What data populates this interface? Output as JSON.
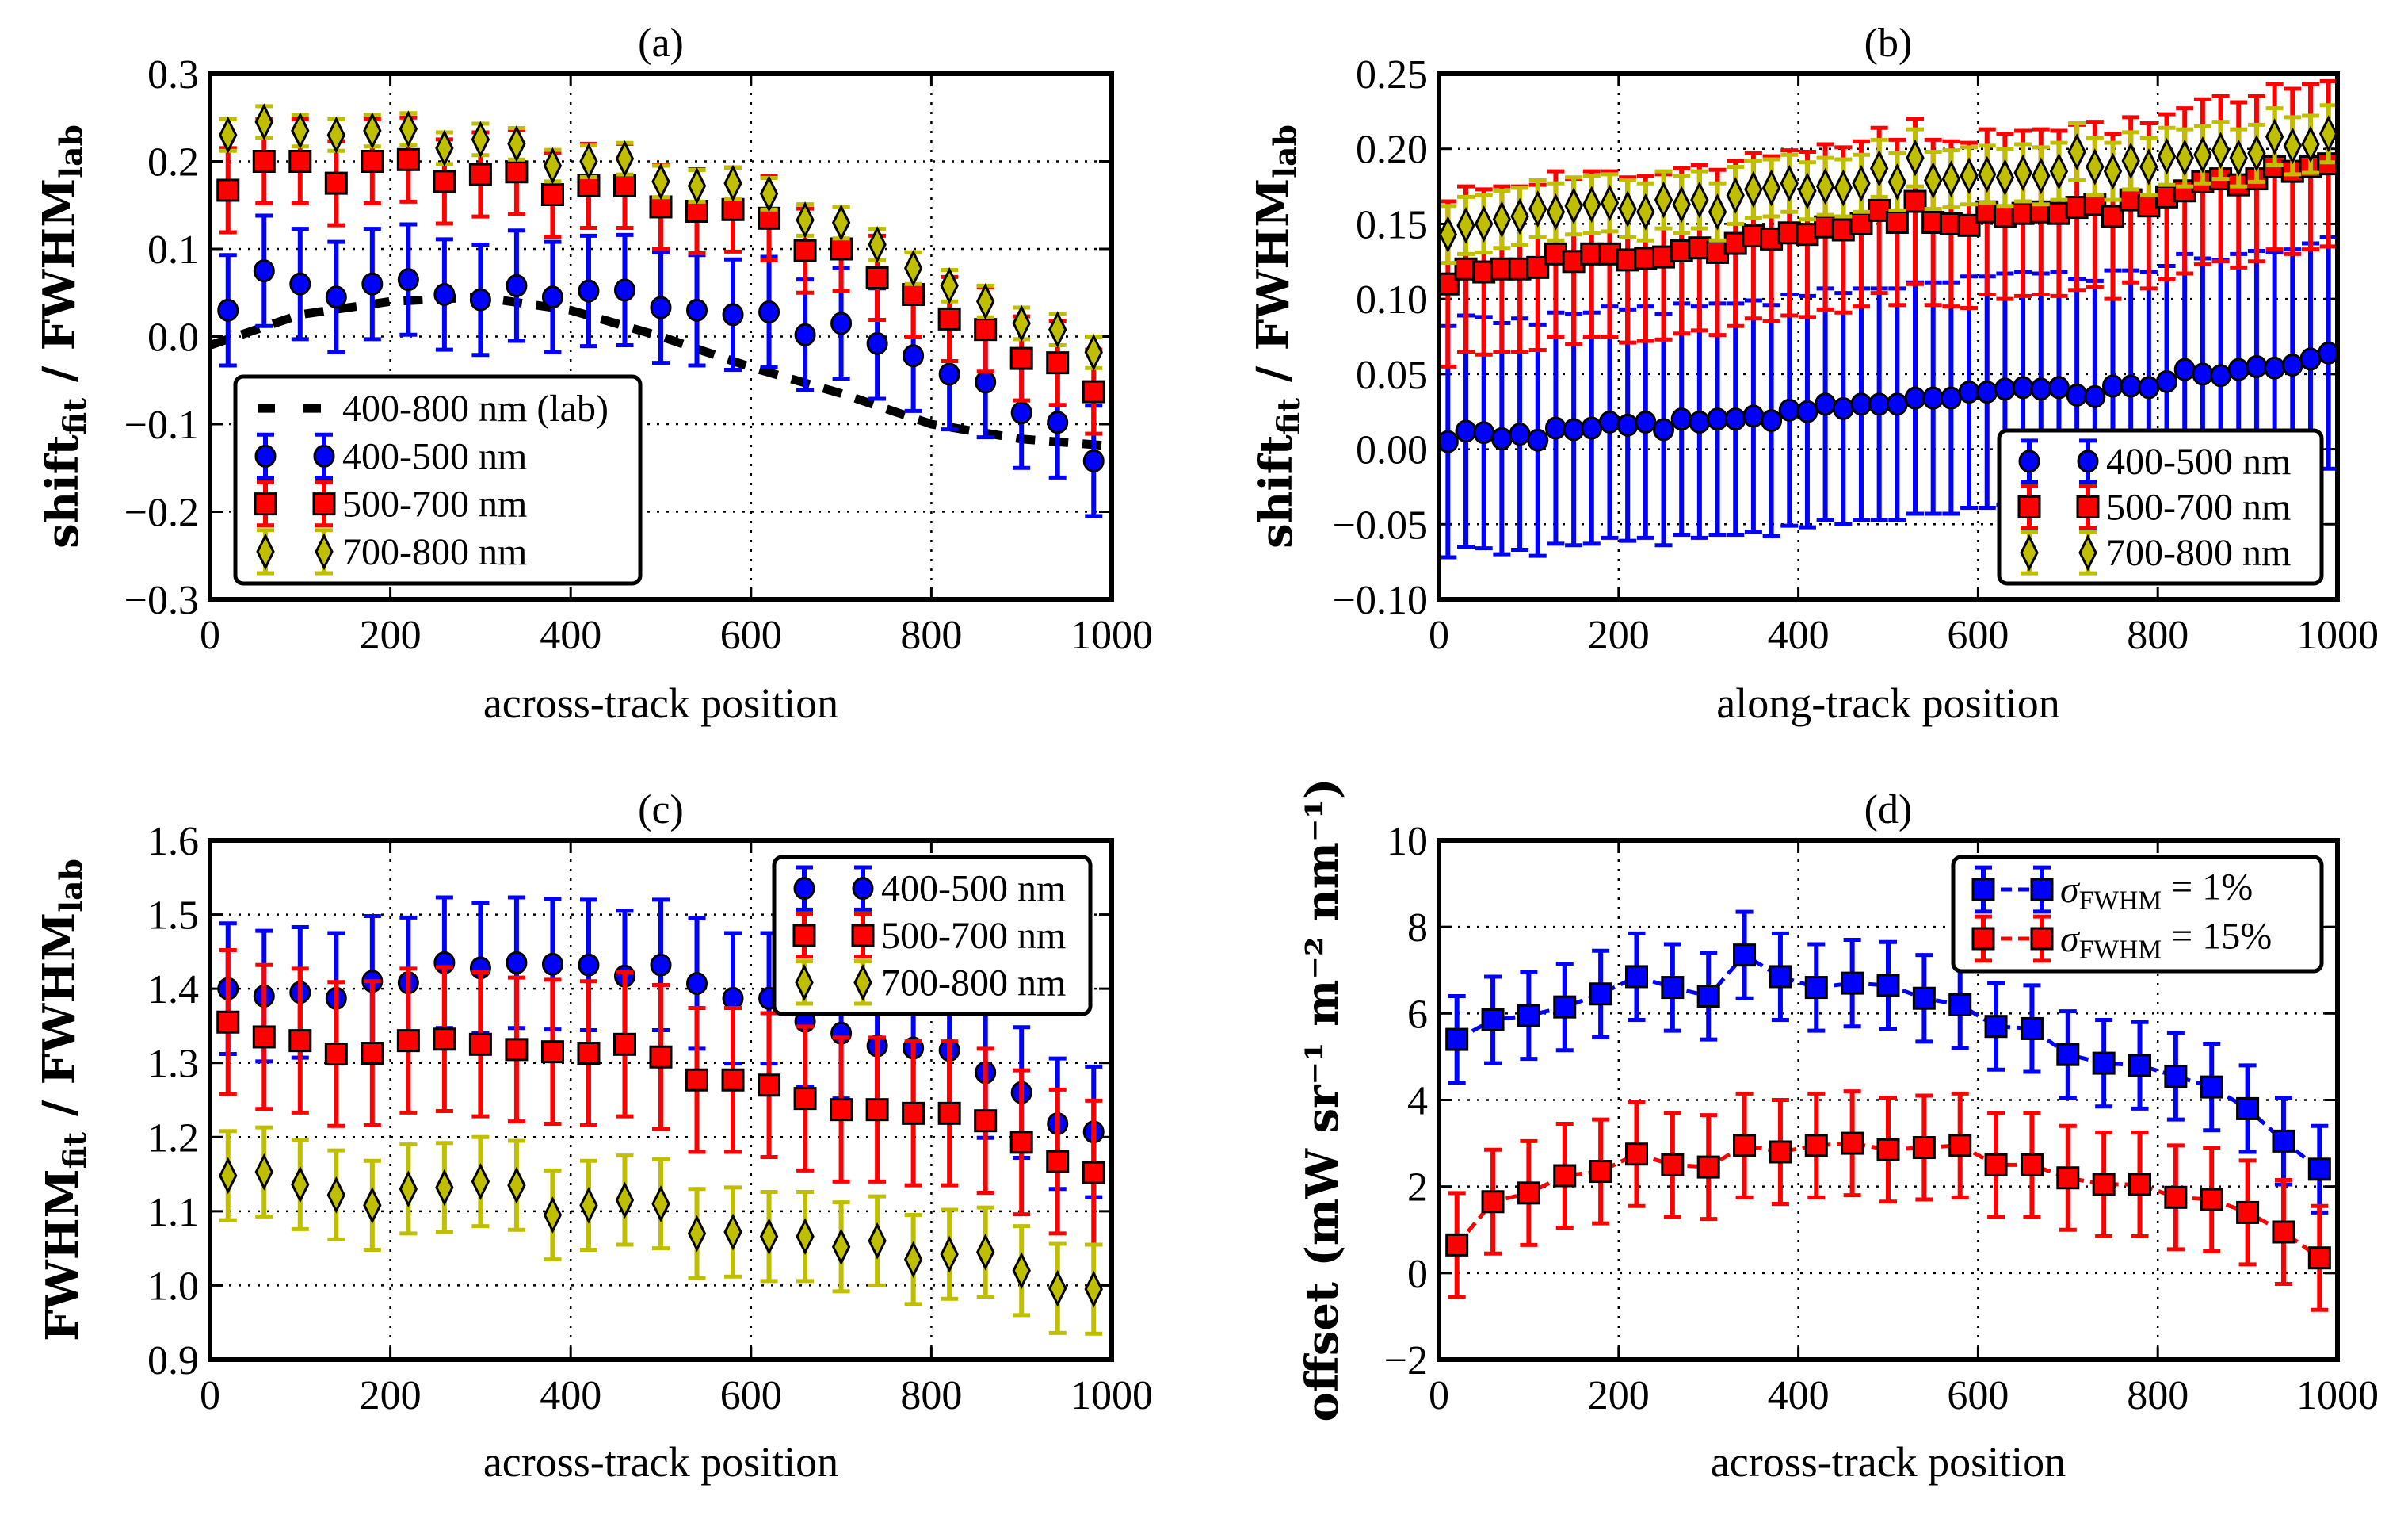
{
  "chart_data": [
    {
      "type": "scatter",
      "title": "(a)",
      "xlabel": "across-track position",
      "ylabel": [
        {
          "text": "shift"
        },
        {
          "text": "fit",
          "sub": true
        },
        {
          "text": " / FWHM"
        },
        {
          "text": "lab",
          "sub": true
        }
      ],
      "xlim": [
        0,
        1000
      ],
      "ylim": [
        -0.3,
        0.3
      ],
      "xticks": [
        "0",
        "200",
        "400",
        "600",
        "800",
        "1000"
      ],
      "yticks": [
        "0.3",
        "0.2",
        "0.1",
        "0.0",
        "−0.1",
        "−0.2",
        "−0.3"
      ],
      "grid": true,
      "legend_position": "lower-left",
      "series": [
        {
          "name": "400-800 nm (lab)",
          "label": [
            {
              "text": "400-800 nm (lab)"
            }
          ],
          "style": "dashed-line",
          "color": "#000000",
          "x": [
            0,
            100,
            200,
            300,
            400,
            500,
            600,
            700,
            800,
            900,
            1000
          ],
          "y": [
            -0.01,
            0.025,
            0.04,
            0.045,
            0.03,
            0.0,
            -0.035,
            -0.065,
            -0.1,
            -0.117,
            -0.125
          ]
        },
        {
          "name": "400-500 nm",
          "label": [
            {
              "text": "400-500 nm"
            }
          ],
          "marker": "circle",
          "color": "#0000ff",
          "yerr": 0.063,
          "x": [
            20,
            60,
            100,
            140,
            180,
            220,
            260,
            300,
            340,
            380,
            420,
            460,
            500,
            540,
            580,
            620,
            660,
            700,
            740,
            780,
            820,
            860,
            900,
            940,
            980
          ],
          "y": [
            0.03,
            0.075,
            0.06,
            0.045,
            0.06,
            0.065,
            0.048,
            0.042,
            0.058,
            0.045,
            0.052,
            0.053,
            0.033,
            0.03,
            0.025,
            0.028,
            0.002,
            0.015,
            -0.008,
            -0.022,
            -0.043,
            -0.052,
            -0.087,
            -0.098,
            -0.142
          ]
        },
        {
          "name": "500-700 nm",
          "label": [
            {
              "text": "500-700 nm"
            }
          ],
          "marker": "square",
          "color": "#ff0000",
          "yerr": 0.048,
          "x": [
            20,
            60,
            100,
            140,
            180,
            220,
            260,
            300,
            340,
            380,
            420,
            460,
            500,
            540,
            580,
            620,
            660,
            700,
            740,
            780,
            820,
            860,
            900,
            940,
            980
          ],
          "y": [
            0.167,
            0.2,
            0.2,
            0.175,
            0.2,
            0.202,
            0.177,
            0.185,
            0.188,
            0.162,
            0.172,
            0.172,
            0.148,
            0.143,
            0.145,
            0.135,
            0.098,
            0.1,
            0.067,
            0.048,
            0.02,
            0.008,
            -0.025,
            -0.03,
            -0.063
          ]
        },
        {
          "name": "700-800 nm",
          "label": [
            {
              "text": "700-800 nm"
            }
          ],
          "marker": "diamond",
          "color": "#bfbf00",
          "yerr": 0.018,
          "x": [
            20,
            60,
            100,
            140,
            180,
            220,
            260,
            300,
            340,
            380,
            420,
            460,
            500,
            540,
            580,
            620,
            660,
            700,
            740,
            780,
            820,
            860,
            900,
            940,
            980
          ],
          "y": [
            0.23,
            0.245,
            0.235,
            0.23,
            0.235,
            0.237,
            0.215,
            0.225,
            0.22,
            0.195,
            0.2,
            0.203,
            0.177,
            0.172,
            0.175,
            0.163,
            0.133,
            0.13,
            0.105,
            0.078,
            0.058,
            0.04,
            0.015,
            0.008,
            -0.018
          ]
        }
      ]
    },
    {
      "type": "scatter",
      "title": "(b)",
      "xlabel": "along-track position",
      "ylabel": [
        {
          "text": "shift"
        },
        {
          "text": "fit",
          "sub": true
        },
        {
          "text": " / FWHM"
        },
        {
          "text": "lab",
          "sub": true
        }
      ],
      "xlim": [
        0,
        1000
      ],
      "ylim": [
        -0.1,
        0.25
      ],
      "xticks": [
        "0",
        "200",
        "400",
        "600",
        "800",
        "1000"
      ],
      "yticks": [
        "0.25",
        "0.20",
        "0.15",
        "0.10",
        "0.05",
        "0.00",
        "−0.05",
        "−0.10"
      ],
      "grid": true,
      "legend_position": "lower-right",
      "series": [
        {
          "name": "400-500 nm",
          "label": [
            {
              "text": "400-500 nm"
            }
          ],
          "marker": "circle",
          "color": "#0000ff",
          "yerr": 0.077,
          "x": [
            10,
            30,
            50,
            70,
            90,
            110,
            130,
            150,
            170,
            190,
            210,
            230,
            250,
            270,
            290,
            310,
            330,
            350,
            370,
            390,
            410,
            430,
            450,
            470,
            490,
            510,
            530,
            550,
            570,
            590,
            610,
            630,
            650,
            670,
            690,
            710,
            730,
            750,
            770,
            790,
            810,
            830,
            850,
            870,
            890,
            910,
            930,
            950,
            970,
            990
          ],
          "y": [
            0.005,
            0.012,
            0.011,
            0.007,
            0.01,
            0.006,
            0.014,
            0.013,
            0.014,
            0.018,
            0.016,
            0.018,
            0.013,
            0.02,
            0.018,
            0.02,
            0.02,
            0.022,
            0.019,
            0.026,
            0.025,
            0.03,
            0.027,
            0.03,
            0.03,
            0.03,
            0.034,
            0.034,
            0.034,
            0.038,
            0.038,
            0.04,
            0.041,
            0.04,
            0.041,
            0.036,
            0.035,
            0.042,
            0.042,
            0.041,
            0.045,
            0.053,
            0.05,
            0.049,
            0.053,
            0.055,
            0.054,
            0.056,
            0.06,
            0.064
          ]
        },
        {
          "name": "500-700 nm",
          "label": [
            {
              "text": "500-700 nm"
            }
          ],
          "marker": "square",
          "color": "#ff0000",
          "yerr": 0.055,
          "x": [
            10,
            30,
            50,
            70,
            90,
            110,
            130,
            150,
            170,
            190,
            210,
            230,
            250,
            270,
            290,
            310,
            330,
            350,
            370,
            390,
            410,
            430,
            450,
            470,
            490,
            510,
            530,
            550,
            570,
            590,
            610,
            630,
            650,
            670,
            690,
            710,
            730,
            750,
            770,
            790,
            810,
            830,
            850,
            870,
            890,
            910,
            930,
            950,
            970,
            990
          ],
          "y": [
            0.11,
            0.12,
            0.118,
            0.12,
            0.12,
            0.121,
            0.13,
            0.125,
            0.13,
            0.13,
            0.126,
            0.127,
            0.128,
            0.132,
            0.134,
            0.131,
            0.137,
            0.142,
            0.14,
            0.144,
            0.143,
            0.148,
            0.146,
            0.15,
            0.159,
            0.151,
            0.165,
            0.151,
            0.15,
            0.149,
            0.158,
            0.155,
            0.157,
            0.158,
            0.157,
            0.161,
            0.163,
            0.155,
            0.166,
            0.162,
            0.168,
            0.172,
            0.178,
            0.18,
            0.176,
            0.18,
            0.188,
            0.185,
            0.188,
            0.19
          ]
        },
        {
          "name": "700-800 nm",
          "label": [
            {
              "text": "700-800 nm"
            }
          ],
          "marker": "diamond",
          "color": "#bfbf00",
          "yerr": 0.019,
          "x": [
            10,
            30,
            50,
            70,
            90,
            110,
            130,
            150,
            170,
            190,
            210,
            230,
            250,
            270,
            290,
            310,
            330,
            350,
            370,
            390,
            410,
            430,
            450,
            470,
            490,
            510,
            530,
            550,
            570,
            590,
            610,
            630,
            650,
            670,
            690,
            710,
            730,
            750,
            770,
            790,
            810,
            830,
            850,
            870,
            890,
            910,
            930,
            950,
            970,
            990
          ],
          "y": [
            0.143,
            0.149,
            0.15,
            0.153,
            0.155,
            0.16,
            0.158,
            0.162,
            0.163,
            0.164,
            0.16,
            0.158,
            0.166,
            0.163,
            0.166,
            0.158,
            0.169,
            0.173,
            0.174,
            0.177,
            0.172,
            0.175,
            0.174,
            0.177,
            0.187,
            0.178,
            0.194,
            0.179,
            0.18,
            0.182,
            0.183,
            0.181,
            0.184,
            0.182,
            0.185,
            0.198,
            0.188,
            0.185,
            0.192,
            0.188,
            0.195,
            0.194,
            0.196,
            0.199,
            0.194,
            0.197,
            0.208,
            0.202,
            0.203,
            0.21
          ]
        }
      ]
    },
    {
      "type": "scatter",
      "title": "(c)",
      "xlabel": "across-track position",
      "ylabel": [
        {
          "text": "FWHM"
        },
        {
          "text": "fit",
          "sub": true
        },
        {
          "text": " / FWHM"
        },
        {
          "text": "lab",
          "sub": true
        }
      ],
      "xlim": [
        0,
        1000
      ],
      "ylim": [
        0.9,
        1.6
      ],
      "xticks": [
        "0",
        "200",
        "400",
        "600",
        "800",
        "1000"
      ],
      "yticks": [
        "1.6",
        "1.5",
        "1.4",
        "1.3",
        "1.2",
        "1.1",
        "1.0",
        "0.9"
      ],
      "grid": true,
      "legend_position": "upper-right",
      "series": [
        {
          "name": "400-500 nm",
          "label": [
            {
              "text": "400-500 nm"
            }
          ],
          "marker": "circle",
          "color": "#0000ff",
          "yerr": 0.088,
          "x": [
            20,
            60,
            100,
            140,
            180,
            220,
            260,
            300,
            340,
            380,
            420,
            460,
            500,
            540,
            580,
            620,
            660,
            700,
            740,
            780,
            820,
            860,
            900,
            940,
            980
          ],
          "y": [
            1.4,
            1.39,
            1.395,
            1.387,
            1.41,
            1.408,
            1.435,
            1.428,
            1.435,
            1.433,
            1.432,
            1.417,
            1.432,
            1.407,
            1.387,
            1.387,
            1.356,
            1.34,
            1.323,
            1.32,
            1.317,
            1.287,
            1.26,
            1.218,
            1.207
          ]
        },
        {
          "name": "500-700 nm",
          "label": [
            {
              "text": "500-700 nm"
            }
          ],
          "marker": "square",
          "color": "#ff0000",
          "yerr": 0.097,
          "x": [
            20,
            60,
            100,
            140,
            180,
            220,
            260,
            300,
            340,
            380,
            420,
            460,
            500,
            540,
            580,
            620,
            660,
            700,
            740,
            780,
            820,
            860,
            900,
            940,
            980
          ],
          "y": [
            1.355,
            1.335,
            1.33,
            1.312,
            1.313,
            1.33,
            1.332,
            1.325,
            1.318,
            1.315,
            1.313,
            1.325,
            1.308,
            1.277,
            1.277,
            1.27,
            1.252,
            1.237,
            1.237,
            1.232,
            1.232,
            1.222,
            1.193,
            1.167,
            1.152
          ]
        },
        {
          "name": "700-800 nm",
          "label": [
            {
              "text": "700-800 nm"
            }
          ],
          "marker": "diamond",
          "color": "#bfbf00",
          "yerr": 0.06,
          "x": [
            20,
            60,
            100,
            140,
            180,
            220,
            260,
            300,
            340,
            380,
            420,
            460,
            500,
            540,
            580,
            620,
            660,
            700,
            740,
            780,
            820,
            860,
            900,
            940,
            980
          ],
          "y": [
            1.148,
            1.153,
            1.136,
            1.122,
            1.108,
            1.13,
            1.132,
            1.14,
            1.135,
            1.095,
            1.108,
            1.115,
            1.11,
            1.07,
            1.072,
            1.066,
            1.066,
            1.052,
            1.06,
            1.035,
            1.042,
            1.045,
            1.02,
            0.996,
            0.995
          ]
        }
      ]
    },
    {
      "type": "line",
      "title": "(d)",
      "xlabel": "across-track position",
      "ylabel": [
        {
          "text": "offset (mW sr⁻¹ m⁻² nm⁻¹)"
        }
      ],
      "xlim": [
        0,
        1000
      ],
      "ylim": [
        -2,
        10
      ],
      "xticks": [
        "0",
        "200",
        "400",
        "600",
        "800",
        "1000"
      ],
      "yticks": [
        "10",
        "8",
        "6",
        "4",
        "2",
        "0",
        "−2"
      ],
      "grid": true,
      "legend_position": "upper-right",
      "series": [
        {
          "name": "σFWHM = 1%",
          "label": [
            {
              "text": "σ",
              "italic": true
            },
            {
              "text": "FWHM",
              "sub": true
            },
            {
              "text": " = 1%"
            }
          ],
          "marker": "square",
          "color": "#0000ff",
          "line": true,
          "yerr": 1.0,
          "x": [
            20,
            60,
            100,
            140,
            180,
            220,
            260,
            300,
            340,
            380,
            420,
            460,
            500,
            540,
            580,
            620,
            660,
            700,
            740,
            780,
            820,
            860,
            900,
            940,
            980
          ],
          "y": [
            5.4,
            5.85,
            5.95,
            6.15,
            6.45,
            6.85,
            6.6,
            6.4,
            7.35,
            6.85,
            6.6,
            6.7,
            6.65,
            6.35,
            6.2,
            5.7,
            5.65,
            5.05,
            4.85,
            4.8,
            4.55,
            4.3,
            3.8,
            3.05,
            2.4
          ]
        },
        {
          "name": "σFWHM = 15%",
          "label": [
            {
              "text": "σ",
              "italic": true
            },
            {
              "text": "FWHM",
              "sub": true
            },
            {
              "text": " = 15%"
            }
          ],
          "marker": "square",
          "color": "#ff0000",
          "line": true,
          "yerr": 1.2,
          "x": [
            20,
            60,
            100,
            140,
            180,
            220,
            260,
            300,
            340,
            380,
            420,
            460,
            500,
            540,
            580,
            620,
            660,
            700,
            740,
            780,
            820,
            860,
            900,
            940,
            980
          ],
          "y": [
            0.65,
            1.65,
            1.85,
            2.25,
            2.35,
            2.75,
            2.5,
            2.45,
            2.95,
            2.8,
            2.95,
            3.0,
            2.85,
            2.9,
            2.95,
            2.5,
            2.5,
            2.2,
            2.05,
            2.05,
            1.75,
            1.7,
            1.4,
            0.95,
            0.35
          ]
        }
      ]
    }
  ]
}
